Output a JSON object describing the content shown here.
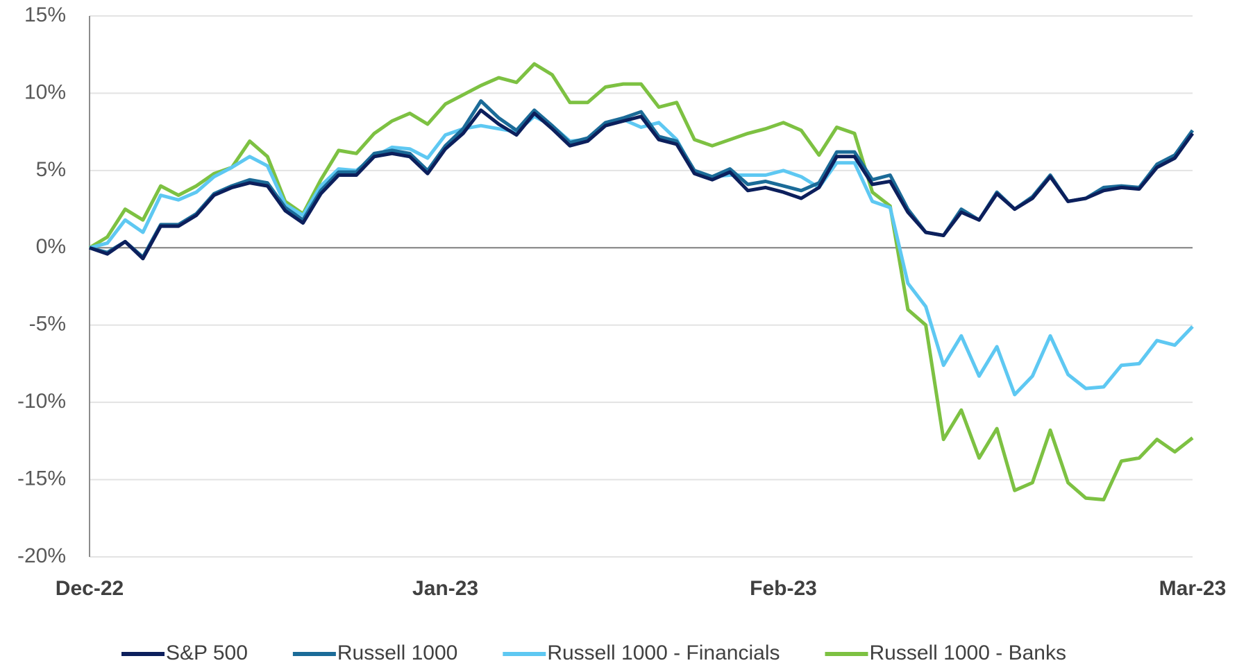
{
  "chart_data": {
    "type": "line",
    "categories": [
      "Dec-22",
      null,
      null,
      null,
      null,
      null,
      null,
      null,
      null,
      null,
      null,
      null,
      null,
      null,
      null,
      null,
      null,
      null,
      null,
      null,
      "Jan-23",
      null,
      null,
      null,
      null,
      null,
      null,
      null,
      null,
      null,
      null,
      null,
      null,
      null,
      null,
      null,
      null,
      null,
      null,
      "Feb-23",
      null,
      null,
      null,
      null,
      null,
      null,
      null,
      null,
      null,
      null,
      null,
      null,
      null,
      null,
      null,
      null,
      null,
      null,
      null,
      null,
      null,
      null,
      "Mar-23"
    ],
    "series": [
      {
        "name": "S&P 500",
        "color": "#0c1f5c",
        "values": [
          0,
          -0.4,
          0.4,
          -0.7,
          1.4,
          1.4,
          2.1,
          3.4,
          3.9,
          4.2,
          4.0,
          2.4,
          1.6,
          3.5,
          4.7,
          4.7,
          5.9,
          6.1,
          5.9,
          4.8,
          6.4,
          7.4,
          8.9,
          8.0,
          7.3,
          8.7,
          7.7,
          6.6,
          6.9,
          7.9,
          8.2,
          8.5,
          7.0,
          6.7,
          4.8,
          4.4,
          4.9,
          3.7,
          3.9,
          3.6,
          3.2,
          3.9,
          5.9,
          5.9,
          4.1,
          4.3,
          2.3,
          1.0,
          0.8,
          2.3,
          1.8,
          3.5,
          2.5,
          3.2,
          4.6,
          3.0,
          3.2,
          3.7,
          3.9,
          3.8,
          5.2,
          5.8,
          7.4
        ]
      },
      {
        "name": "Russell 1000",
        "color": "#1b6b98",
        "values": [
          0,
          -0.3,
          0.4,
          -0.6,
          1.5,
          1.5,
          2.2,
          3.5,
          4.0,
          4.4,
          4.2,
          2.6,
          1.8,
          3.7,
          4.9,
          4.9,
          6.1,
          6.3,
          6.1,
          5.0,
          6.6,
          7.7,
          9.5,
          8.4,
          7.6,
          8.9,
          7.9,
          6.8,
          7.1,
          8.1,
          8.4,
          8.8,
          7.2,
          6.9,
          5.0,
          4.6,
          5.1,
          4.1,
          4.3,
          4.0,
          3.7,
          4.2,
          6.2,
          6.2,
          4.4,
          4.7,
          2.5,
          1.0,
          0.8,
          2.5,
          1.8,
          3.6,
          2.5,
          3.3,
          4.7,
          3.0,
          3.2,
          3.9,
          4.0,
          3.9,
          5.4,
          6.0,
          7.6
        ]
      },
      {
        "name": "Russell 1000 - Financials",
        "color": "#5ec8f2",
        "values": [
          0,
          0.3,
          1.8,
          1.0,
          3.4,
          3.1,
          3.6,
          4.6,
          5.2,
          5.9,
          5.3,
          2.8,
          2.1,
          4.0,
          5.1,
          5.0,
          5.9,
          6.5,
          6.4,
          5.8,
          7.3,
          7.7,
          7.9,
          7.7,
          7.5,
          8.5,
          7.9,
          6.9,
          7.0,
          8.0,
          8.3,
          7.8,
          8.1,
          7.0,
          4.9,
          4.6,
          4.7,
          4.7,
          4.7,
          5.0,
          4.6,
          3.9,
          5.5,
          5.5,
          3.0,
          2.6,
          -2.3,
          -3.8,
          -7.6,
          -5.7,
          -8.3,
          -6.4,
          -9.5,
          -8.3,
          -5.7,
          -8.2,
          -9.1,
          -9.0,
          -7.6,
          -7.5,
          -6.0,
          -6.3,
          -5.1
        ]
      },
      {
        "name": "Russell 1000 - Banks",
        "color": "#7dc142",
        "values": [
          0,
          0.7,
          2.5,
          1.8,
          4.0,
          3.4,
          4.0,
          4.8,
          5.2,
          6.9,
          5.9,
          3.0,
          2.2,
          4.4,
          6.3,
          6.1,
          7.4,
          8.2,
          8.7,
          8.0,
          9.3,
          9.9,
          10.5,
          11.0,
          10.7,
          11.9,
          11.2,
          9.4,
          9.4,
          10.4,
          10.6,
          10.6,
          9.1,
          9.4,
          7.0,
          6.6,
          7.0,
          7.4,
          7.7,
          8.1,
          7.6,
          6.0,
          7.8,
          7.4,
          3.6,
          2.7,
          -4.0,
          -5.0,
          -12.4,
          -10.5,
          -13.6,
          -11.7,
          -15.7,
          -15.2,
          -11.8,
          -15.2,
          -16.2,
          -16.3,
          -13.8,
          -13.6,
          -12.4,
          -13.2,
          -12.3
        ]
      }
    ],
    "ylim": [
      -20,
      15
    ],
    "yticks": [
      {
        "value": -20,
        "label": "-20%"
      },
      {
        "value": -15,
        "label": "-15%"
      },
      {
        "value": -10,
        "label": "-10%"
      },
      {
        "value": -5,
        "label": "-5%"
      },
      {
        "value": 0,
        "label": "0%"
      },
      {
        "value": 5,
        "label": "5%"
      },
      {
        "value": 10,
        "label": "10%"
      },
      {
        "value": 15,
        "label": "15%"
      }
    ],
    "grid": true,
    "legend": "bottom"
  }
}
